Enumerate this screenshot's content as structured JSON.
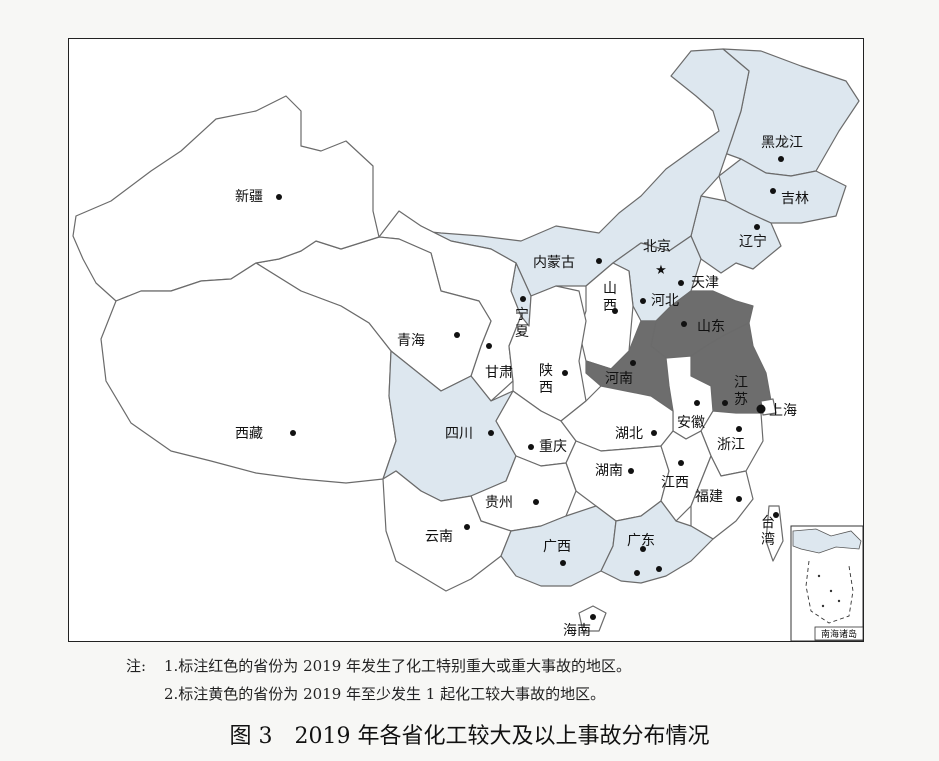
{
  "map": {
    "capital_marker": "★",
    "fill_colors": {
      "red_highlight": "#6d6d6d",
      "yellow_highlight": "#dde7ef",
      "unmarked": "#ffffff",
      "border": "#6b6b6b"
    },
    "provinces": [
      {
        "id": "heilongjiang",
        "label": "黑龙江",
        "category": "yellow"
      },
      {
        "id": "jilin",
        "label": "吉林",
        "category": "yellow"
      },
      {
        "id": "liaoning",
        "label": "辽宁",
        "category": "yellow"
      },
      {
        "id": "neimenggu",
        "label": "内蒙古",
        "category": "yellow"
      },
      {
        "id": "beijing",
        "label": "北京",
        "category": "none"
      },
      {
        "id": "tianjin",
        "label": "天津",
        "category": "none"
      },
      {
        "id": "hebei",
        "label": "河北",
        "category": "yellow"
      },
      {
        "id": "shanxi",
        "label": "山西",
        "category": "none"
      },
      {
        "id": "shandong",
        "label": "山东",
        "category": "red"
      },
      {
        "id": "henan",
        "label": "河南",
        "category": "red"
      },
      {
        "id": "jiangsu",
        "label": "江苏",
        "category": "red"
      },
      {
        "id": "shanghai",
        "label": "上海",
        "category": "none"
      },
      {
        "id": "anhui",
        "label": "安徽",
        "category": "none"
      },
      {
        "id": "zhejiang",
        "label": "浙江",
        "category": "none"
      },
      {
        "id": "ningxia",
        "label": "宁夏",
        "category": "yellow"
      },
      {
        "id": "gansu",
        "label": "甘肃",
        "category": "none"
      },
      {
        "id": "qinghai",
        "label": "青海",
        "category": "none"
      },
      {
        "id": "xinjiang",
        "label": "新疆",
        "category": "none"
      },
      {
        "id": "xizang",
        "label": "西藏",
        "category": "none"
      },
      {
        "id": "shaanxi",
        "label": "陕西",
        "category": "none"
      },
      {
        "id": "sichuan",
        "label": "四川",
        "category": "yellow"
      },
      {
        "id": "chongqing",
        "label": "重庆",
        "category": "none"
      },
      {
        "id": "hubei",
        "label": "湖北",
        "category": "none"
      },
      {
        "id": "hunan",
        "label": "湖南",
        "category": "none"
      },
      {
        "id": "jiangxi",
        "label": "江西",
        "category": "none"
      },
      {
        "id": "fujian",
        "label": "福建",
        "category": "none"
      },
      {
        "id": "guizhou",
        "label": "贵州",
        "category": "none"
      },
      {
        "id": "yunnan",
        "label": "云南",
        "category": "none"
      },
      {
        "id": "guangxi",
        "label": "广西",
        "category": "yellow"
      },
      {
        "id": "guangdong",
        "label": "广东",
        "category": "yellow"
      },
      {
        "id": "hainan",
        "label": "海南",
        "category": "none"
      },
      {
        "id": "taiwan",
        "label": "台湾",
        "category": "none"
      }
    ],
    "inset": {
      "caption": "南海诸岛"
    }
  },
  "notes": {
    "prefix": "注:",
    "line1": "1.标注红色的省份为 2019 年发生了化工特别重大或重大事故的地区。",
    "line2": "2.标注黄色的省份为 2019 年至少发生 1 起化工较大事故的地区。"
  },
  "caption": {
    "figure_number": "图 3",
    "title": "2019 年各省化工较大及以上事故分布情况"
  }
}
